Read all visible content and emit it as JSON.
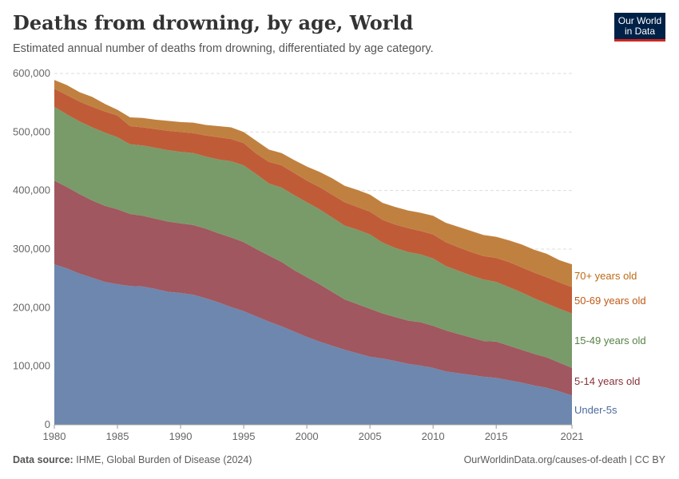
{
  "header": {
    "title": "Deaths from drowning, by age, World",
    "subtitle": "Estimated annual number of deaths from drowning, differentiated by age category.",
    "logo": "Our World in Data"
  },
  "footer": {
    "source_label": "Data source:",
    "source": "IHME, Global Burden of Disease (2024)",
    "link": "OurWorldinData.org/causes-of-death | CC BY"
  },
  "chart_data": {
    "type": "area",
    "stacked": true,
    "title": "Deaths from drowning, by age, World",
    "xlabel": "",
    "ylabel": "",
    "ylim": [
      0,
      600000
    ],
    "xlim": [
      1980,
      2021
    ],
    "grid": "horizontal dashed",
    "legend": "right-inline labels",
    "yticks": [
      "0",
      "100,000",
      "200,000",
      "300,000",
      "400,000",
      "500,000",
      "600,000"
    ],
    "xticks": [
      "1980",
      "1985",
      "1990",
      "1995",
      "2000",
      "2005",
      "2010",
      "2015",
      "2021"
    ],
    "x": [
      1980,
      1981,
      1982,
      1983,
      1984,
      1985,
      1986,
      1987,
      1988,
      1989,
      1990,
      1991,
      1992,
      1993,
      1994,
      1995,
      1996,
      1997,
      1998,
      1999,
      2000,
      2001,
      2002,
      2003,
      2004,
      2005,
      2006,
      2007,
      2008,
      2009,
      2010,
      2011,
      2012,
      2013,
      2014,
      2015,
      2016,
      2017,
      2018,
      2019,
      2020,
      2021
    ],
    "series": [
      {
        "name": "Under-5s",
        "color": "#6D87AE",
        "label_color": "#4C6A9C",
        "values": [
          274000,
          267000,
          258000,
          251000,
          244000,
          240000,
          237000,
          236000,
          232000,
          227000,
          225000,
          222000,
          216000,
          209000,
          201000,
          194000,
          185000,
          176000,
          168000,
          159000,
          150000,
          142000,
          135000,
          128000,
          122000,
          116000,
          113000,
          109000,
          104000,
          101000,
          97000,
          91000,
          88000,
          85000,
          82000,
          80000,
          76000,
          72000,
          67000,
          63000,
          57000,
          50000
        ]
      },
      {
        "name": "5-14 years old",
        "color": "#A0575F",
        "label_color": "#883039",
        "values": [
          143000,
          139000,
          136000,
          132000,
          130000,
          128000,
          123000,
          121000,
          120000,
          120000,
          119000,
          119000,
          119000,
          118000,
          119000,
          118000,
          115000,
          113000,
          110000,
          105000,
          102000,
          98000,
          92000,
          86000,
          84000,
          82000,
          77000,
          75000,
          74000,
          74000,
          72000,
          70000,
          67000,
          64000,
          61000,
          62000,
          59000,
          56000,
          54000,
          52000,
          49000,
          47000
        ]
      },
      {
        "name": "15-49 years old",
        "color": "#789B69",
        "label_color": "#578145",
        "values": [
          126000,
          124000,
          124000,
          125000,
          125000,
          123000,
          119000,
          120000,
          121000,
          122000,
          122000,
          123000,
          123000,
          126000,
          130000,
          131000,
          128000,
          123000,
          127000,
          128000,
          128000,
          128000,
          127000,
          126000,
          127000,
          127000,
          121000,
          118000,
          117000,
          116000,
          115000,
          110000,
          108000,
          106000,
          105000,
          102000,
          100000,
          98000,
          95000,
          92000,
          92000,
          93000
        ]
      },
      {
        "name": "50-69 years old",
        "color": "#C05B38",
        "label_color": "#C05917",
        "values": [
          31000,
          33000,
          34000,
          35000,
          36000,
          37000,
          31000,
          31000,
          32000,
          33000,
          34000,
          34000,
          36000,
          38000,
          38000,
          38000,
          35000,
          37000,
          38000,
          38000,
          37000,
          38000,
          39000,
          40000,
          39000,
          39000,
          39000,
          40000,
          41000,
          40000,
          41000,
          41000,
          40000,
          40000,
          40000,
          41000,
          43000,
          43000,
          44000,
          45000,
          45000,
          45000
        ]
      },
      {
        "name": "70+ years old",
        "color": "#C08140",
        "label_color": "#BE6A15",
        "values": [
          15000,
          17000,
          16000,
          17000,
          13000,
          10000,
          15000,
          16000,
          16000,
          17000,
          17000,
          18000,
          18000,
          19000,
          20000,
          19000,
          22000,
          21000,
          21000,
          22000,
          24000,
          26000,
          28000,
          28000,
          29000,
          29000,
          29000,
          30000,
          30000,
          31000,
          32000,
          33000,
          35000,
          36000,
          36000,
          36000,
          37000,
          39000,
          39000,
          40000,
          38000,
          39000
        ]
      }
    ]
  }
}
